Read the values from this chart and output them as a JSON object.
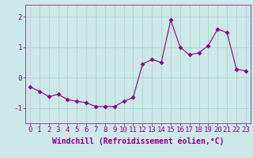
{
  "x": [
    0,
    1,
    2,
    3,
    4,
    5,
    6,
    7,
    8,
    9,
    10,
    11,
    12,
    13,
    14,
    15,
    16,
    17,
    18,
    19,
    20,
    21,
    22,
    23
  ],
  "y": [
    -0.3,
    -0.45,
    -0.62,
    -0.55,
    -0.72,
    -0.78,
    -0.82,
    -0.95,
    -0.95,
    -0.95,
    -0.78,
    -0.65,
    0.45,
    0.6,
    0.5,
    1.9,
    1.0,
    0.75,
    0.82,
    1.05,
    1.6,
    1.48,
    0.28,
    0.22
  ],
  "line_color": "#880088",
  "marker": "D",
  "markersize": 2.5,
  "linewidth": 0.8,
  "bg_color": "#cce8e8",
  "grid_color": "#aacccc",
  "xlabel": "Windchill (Refroidissement éolien,°C)",
  "xlabel_fontsize": 7,
  "xlim": [
    -0.5,
    23.5
  ],
  "ylim": [
    -1.5,
    2.4
  ],
  "yticks": [
    -1,
    0,
    1,
    2
  ],
  "xticks": [
    0,
    1,
    2,
    3,
    4,
    5,
    6,
    7,
    8,
    9,
    10,
    11,
    12,
    13,
    14,
    15,
    16,
    17,
    18,
    19,
    20,
    21,
    22,
    23
  ],
  "tick_fontsize": 6.5,
  "axis_color": "#880088"
}
